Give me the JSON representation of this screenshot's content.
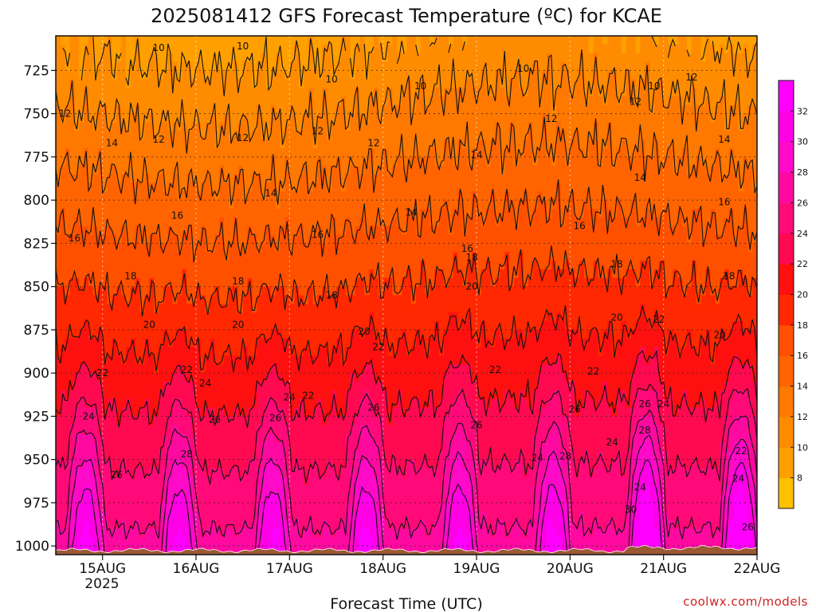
{
  "chart_data": {
    "type": "heatmap",
    "title": "2025081412 GFS Forecast Temperature (ºC) for KCAE",
    "xlabel": "Forecast Time (UTC)",
    "ylabel": "",
    "x_ticks": [
      "15AUG",
      "16AUG",
      "17AUG",
      "18AUG",
      "19AUG",
      "20AUG",
      "21AUG",
      "22AUG"
    ],
    "x_year": "2025",
    "y_ticks": [
      725,
      750,
      775,
      800,
      825,
      850,
      875,
      900,
      925,
      950,
      975,
      1000
    ],
    "y_range": [
      1005,
      705
    ],
    "x_range_days": [
      14.5,
      22.0
    ],
    "colorbar": {
      "ticks": [
        8,
        10,
        12,
        14,
        16,
        18,
        20,
        22,
        24,
        26,
        28,
        30,
        32
      ],
      "colors": [
        "#ffc000",
        "#ffa000",
        "#ff8c00",
        "#ff7800",
        "#ff6400",
        "#ff5000",
        "#ff2800",
        "#ff1010",
        "#ff0a50",
        "#ff0a78",
        "#ff0aa0",
        "#ff0ac8",
        "#ff00e6",
        "#ff00ff"
      ]
    },
    "contour_levels": [
      10,
      12,
      14,
      16,
      18,
      20,
      22,
      24,
      26,
      28,
      30
    ],
    "contour_label_positions": [
      {
        "v": 10,
        "t": 15.6,
        "p": 712
      },
      {
        "v": 10,
        "t": 16.5,
        "p": 711
      },
      {
        "v": 10,
        "t": 17.45,
        "p": 730
      },
      {
        "v": 10,
        "t": 18.4,
        "p": 734
      },
      {
        "v": 10,
        "t": 19.5,
        "p": 724
      },
      {
        "v": 10,
        "t": 20.9,
        "p": 734
      },
      {
        "v": 12,
        "t": 14.6,
        "p": 750
      },
      {
        "v": 12,
        "t": 15.6,
        "p": 765
      },
      {
        "v": 12,
        "t": 16.5,
        "p": 764
      },
      {
        "v": 12,
        "t": 17.3,
        "p": 760
      },
      {
        "v": 12,
        "t": 17.9,
        "p": 767
      },
      {
        "v": 12,
        "t": 19.8,
        "p": 753
      },
      {
        "v": 12,
        "t": 20.7,
        "p": 743
      },
      {
        "v": 12,
        "t": 21.3,
        "p": 729
      },
      {
        "v": 14,
        "t": 15.1,
        "p": 767
      },
      {
        "v": 14,
        "t": 16.8,
        "p": 796
      },
      {
        "v": 14,
        "t": 18.3,
        "p": 807
      },
      {
        "v": 14,
        "t": 19.0,
        "p": 774
      },
      {
        "v": 14,
        "t": 20.75,
        "p": 787
      },
      {
        "v": 14,
        "t": 21.65,
        "p": 765
      },
      {
        "v": 16,
        "t": 14.7,
        "p": 822
      },
      {
        "v": 16,
        "t": 15.8,
        "p": 809
      },
      {
        "v": 16,
        "t": 17.3,
        "p": 820
      },
      {
        "v": 16,
        "t": 18.9,
        "p": 828
      },
      {
        "v": 16,
        "t": 20.1,
        "p": 815
      },
      {
        "v": 16,
        "t": 21.65,
        "p": 801
      },
      {
        "v": 18,
        "t": 15.3,
        "p": 844
      },
      {
        "v": 18,
        "t": 16.45,
        "p": 847
      },
      {
        "v": 18,
        "t": 17.45,
        "p": 855
      },
      {
        "v": 18,
        "t": 18.95,
        "p": 833
      },
      {
        "v": 18,
        "t": 20.5,
        "p": 837
      },
      {
        "v": 18,
        "t": 21.7,
        "p": 844
      },
      {
        "v": 20,
        "t": 15.5,
        "p": 872
      },
      {
        "v": 20,
        "t": 16.45,
        "p": 872
      },
      {
        "v": 20,
        "t": 17.8,
        "p": 876
      },
      {
        "v": 20,
        "t": 18.95,
        "p": 850
      },
      {
        "v": 20,
        "t": 20.5,
        "p": 868
      },
      {
        "v": 20,
        "t": 21.6,
        "p": 878
      },
      {
        "v": 22,
        "t": 15.0,
        "p": 900
      },
      {
        "v": 22,
        "t": 15.9,
        "p": 898
      },
      {
        "v": 22,
        "t": 17.2,
        "p": 913
      },
      {
        "v": 22,
        "t": 17.95,
        "p": 885
      },
      {
        "v": 22,
        "t": 19.2,
        "p": 898
      },
      {
        "v": 22,
        "t": 20.25,
        "p": 899
      },
      {
        "v": 22,
        "t": 20.95,
        "p": 869
      },
      {
        "v": 22,
        "t": 21.83,
        "p": 945
      },
      {
        "v": 24,
        "t": 14.85,
        "p": 925
      },
      {
        "v": 24,
        "t": 16.1,
        "p": 906
      },
      {
        "v": 24,
        "t": 17.0,
        "p": 914
      },
      {
        "v": 24,
        "t": 19.65,
        "p": 949
      },
      {
        "v": 24,
        "t": 20.45,
        "p": 940
      },
      {
        "v": 24,
        "t": 20.75,
        "p": 966
      },
      {
        "v": 24,
        "t": 21.0,
        "p": 918
      },
      {
        "v": 24,
        "t": 21.8,
        "p": 961
      },
      {
        "v": 26,
        "t": 15.15,
        "p": 959
      },
      {
        "v": 26,
        "t": 16.2,
        "p": 927
      },
      {
        "v": 26,
        "t": 16.85,
        "p": 926
      },
      {
        "v": 26,
        "t": 17.9,
        "p": 920
      },
      {
        "v": 26,
        "t": 19.0,
        "p": 930
      },
      {
        "v": 26,
        "t": 20.05,
        "p": 921
      },
      {
        "v": 26,
        "t": 20.8,
        "p": 918
      },
      {
        "v": 26,
        "t": 21.9,
        "p": 989
      },
      {
        "v": 28,
        "t": 15.9,
        "p": 947
      },
      {
        "v": 28,
        "t": 19.95,
        "p": 948
      },
      {
        "v": 28,
        "t": 20.8,
        "p": 933
      },
      {
        "v": 30,
        "t": 20.65,
        "p": 979
      }
    ],
    "credit": "coolwx.com/models"
  }
}
